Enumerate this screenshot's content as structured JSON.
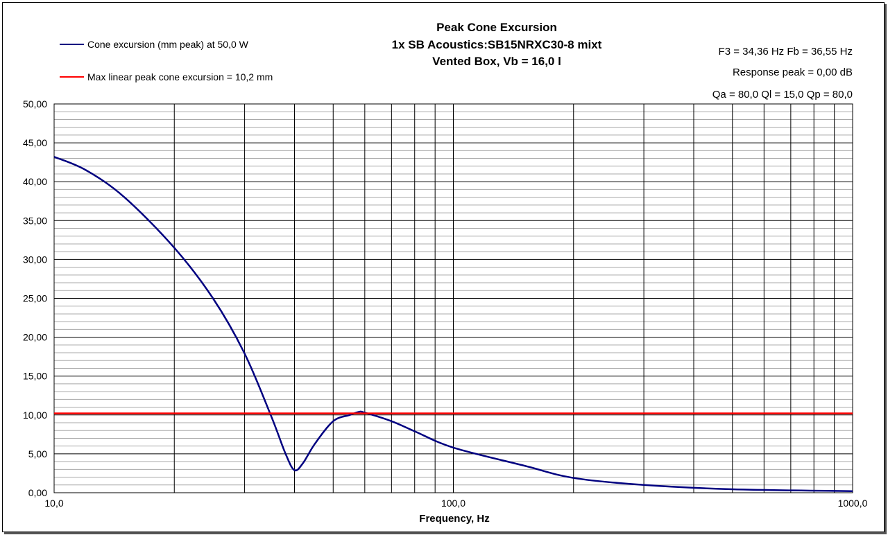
{
  "chart_data": {
    "type": "line",
    "title": [
      "Peak Cone Excursion",
      "1x SB Acoustics:SB15NRXC30-8 mixt",
      "Vented Box, Vb = 16,0 l"
    ],
    "xlabel": "Frequency, Hz",
    "ylabel": "",
    "xscale": "log",
    "xlim": [
      10,
      1000
    ],
    "ylim": [
      0,
      50
    ],
    "xticks": [
      "10,0",
      "100,0",
      "1000,0"
    ],
    "yticks": [
      "0,00",
      "5,00",
      "10,00",
      "15,00",
      "20,00",
      "25,00",
      "30,00",
      "35,00",
      "40,00",
      "45,00",
      "50,00"
    ],
    "grid": true,
    "legend_placement": "top-left",
    "annotations": [
      "F3 = 34,36 Hz  Fb = 36,55 Hz",
      "Response peak = 0,00 dB",
      "Qa = 80,0  Ql = 15,0  Qp = 80,0"
    ],
    "series": [
      {
        "name": "Cone excursion (mm peak) at 50,0 W",
        "color": "#000080",
        "x": [
          10,
          12,
          15,
          20,
          25,
          30,
          35,
          38,
          40,
          42,
          45,
          50,
          55,
          58,
          60,
          70,
          80,
          100,
          150,
          200,
          300,
          500,
          1000
        ],
        "y": [
          43.2,
          41.5,
          38.0,
          31.5,
          25.0,
          17.9,
          9.8,
          5.0,
          2.9,
          3.8,
          6.3,
          9.2,
          10.0,
          10.4,
          10.3,
          9.2,
          7.9,
          5.8,
          3.5,
          1.9,
          1.0,
          0.45,
          0.2
        ]
      },
      {
        "name": "Max linear peak cone excursion = 10,2 mm",
        "color": "#ff0000",
        "x": [
          10,
          1000
        ],
        "y": [
          10.2,
          10.2
        ]
      }
    ]
  }
}
